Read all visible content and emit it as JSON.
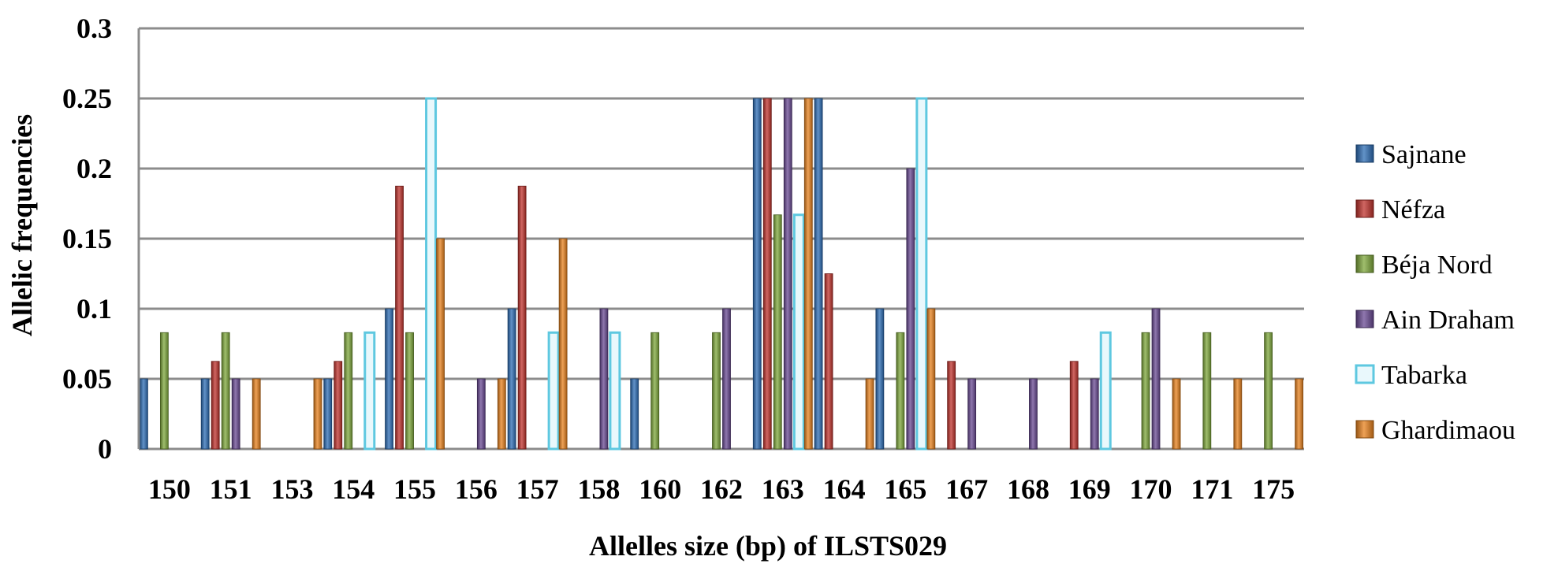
{
  "chart_data": {
    "type": "bar",
    "title": "",
    "xlabel": "Allelles size (bp)  of ILSTS029",
    "ylabel": "Allelic frequencies",
    "ylim": [
      0,
      0.3
    ],
    "yticks": [
      "0",
      "0.05",
      "0.1",
      "0.15",
      "0.2",
      "0.25",
      "0.3"
    ],
    "grid": true,
    "legend_position": "right",
    "categories": [
      "150",
      "151",
      "153",
      "154",
      "155",
      "156",
      "157",
      "158",
      "160",
      "162",
      "163",
      "164",
      "165",
      "167",
      "168",
      "169",
      "170",
      "171",
      "175"
    ],
    "series": [
      {
        "name": "Sajnane",
        "color": "#2e6db5",
        "values": [
          0.05,
          0.05,
          0,
          0.05,
          0.1,
          0,
          0.1,
          0,
          0.05,
          0,
          0.25,
          0.25,
          0.1,
          0,
          0,
          0,
          0,
          0,
          0
        ]
      },
      {
        "name": "Néfza",
        "color": "#c0332d",
        "values": [
          0,
          0.0625,
          0,
          0.0625,
          0.1875,
          0,
          0.1875,
          0,
          0,
          0,
          0.25,
          0.125,
          0,
          0.0625,
          0,
          0.0625,
          0,
          0,
          0
        ]
      },
      {
        "name": "Béja Nord",
        "color": "#7fa83c",
        "values": [
          0.083,
          0.083,
          0,
          0.083,
          0.083,
          0,
          0,
          0,
          0.083,
          0.083,
          0.167,
          0,
          0.083,
          0,
          0,
          0,
          0.083,
          0.083,
          0.083
        ]
      },
      {
        "name": "Ain Draham",
        "color": "#6a4a93",
        "values": [
          0,
          0.05,
          0,
          0,
          0,
          0.05,
          0,
          0.1,
          0,
          0.1,
          0.25,
          0,
          0.2,
          0.05,
          0.05,
          0.05,
          0.1,
          0,
          0
        ]
      },
      {
        "name": "Tabarka",
        "color": "#5ec8e0",
        "values": [
          0,
          0,
          0,
          0.083,
          0.25,
          0,
          0.083,
          0.083,
          0,
          0,
          0.167,
          0,
          0.25,
          0,
          0,
          0.083,
          0,
          0,
          0
        ]
      },
      {
        "name": "Ghardimaou",
        "color": "#e8821e",
        "values": [
          0,
          0.05,
          0.05,
          0,
          0.15,
          0.05,
          0.15,
          0,
          0,
          0,
          0.25,
          0.05,
          0.1,
          0,
          0,
          0,
          0.05,
          0.05,
          0.05
        ]
      }
    ]
  }
}
